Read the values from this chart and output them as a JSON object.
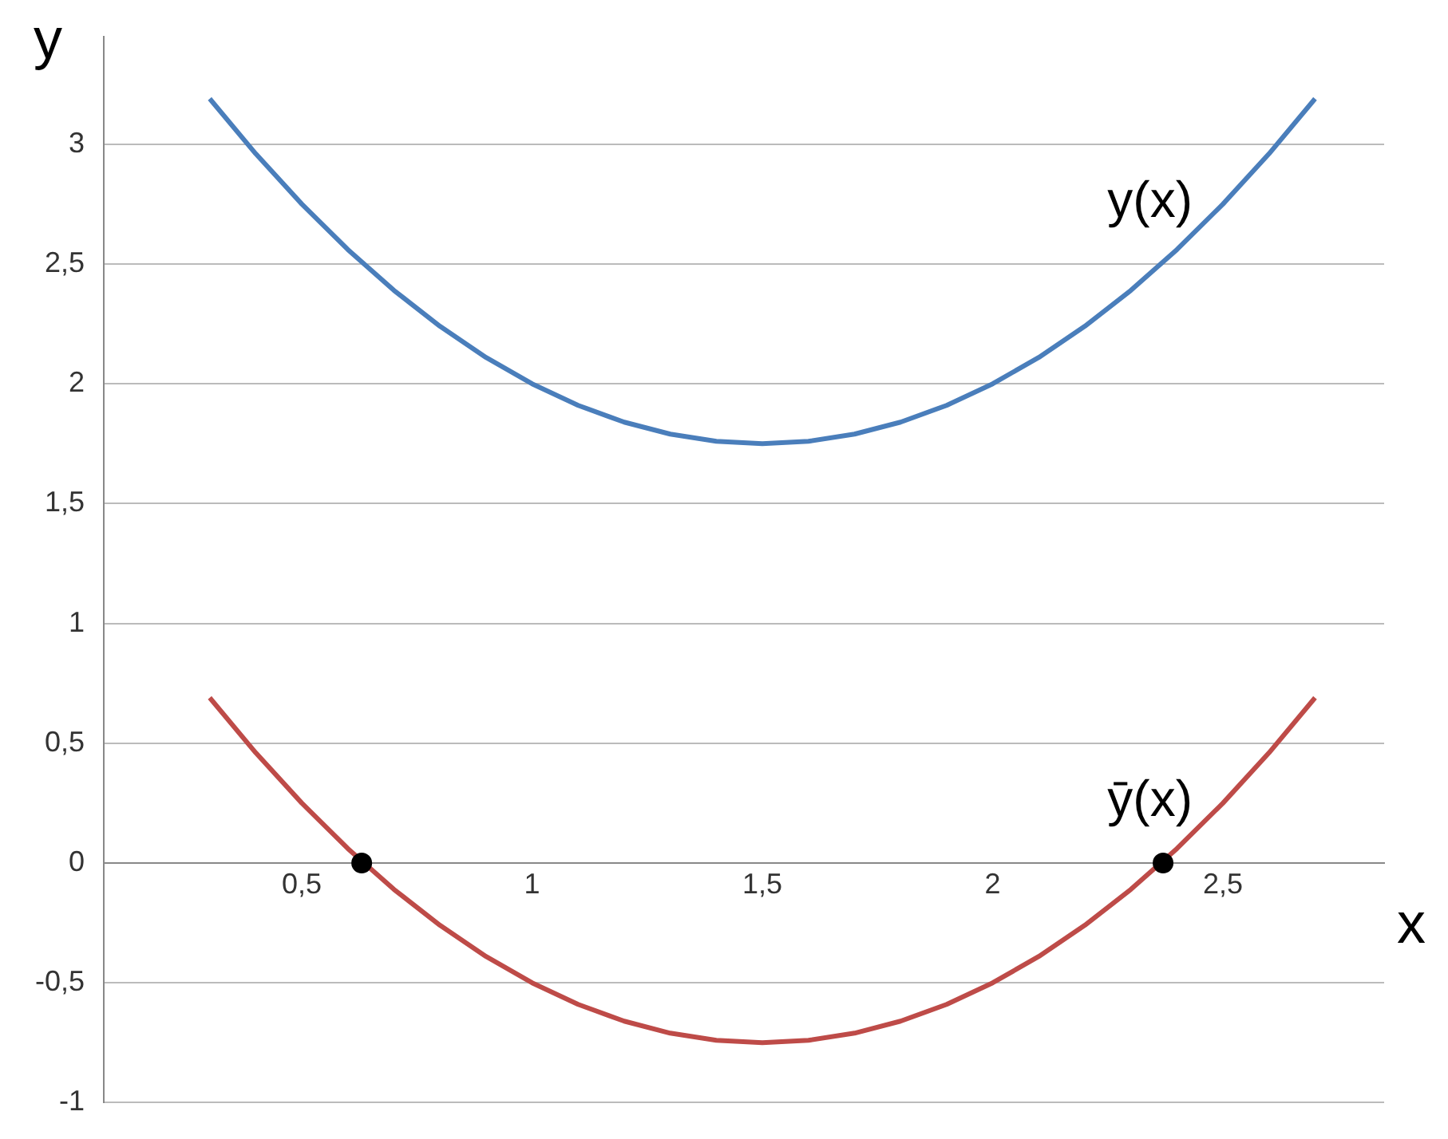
{
  "chart_data": {
    "type": "line",
    "xlabel": "x",
    "ylabel": "y",
    "xlim": [
      0.07,
      2.85
    ],
    "ylim": [
      -1,
      3.45
    ],
    "xticks": [
      {
        "value": 0.5,
        "label": "0,5"
      },
      1,
      {
        "value": 1.5,
        "label": "1,5"
      },
      2,
      {
        "value": 2.5,
        "label": "2,5"
      }
    ],
    "yticks": [
      -1,
      {
        "value": -0.5,
        "label": "-0,5"
      },
      0,
      {
        "value": 0.5,
        "label": "0,5"
      },
      1,
      {
        "value": 1.5,
        "label": "1,5"
      },
      2,
      {
        "value": 2.5,
        "label": "2,5"
      },
      3
    ],
    "grid": "y",
    "legend": false,
    "marker": "none",
    "series": [
      {
        "color": "#4a7ebb",
        "x": [
          0.3,
          0.4,
          0.5,
          0.6,
          0.7,
          0.8,
          0.9,
          1.0,
          1.1,
          1.2,
          1.3,
          1.4,
          1.5,
          1.6,
          1.7,
          1.8,
          1.9,
          2.0,
          2.1,
          2.2,
          2.3,
          2.4,
          2.5,
          2.6,
          2.7
        ],
        "values": [
          3.19,
          2.96,
          2.75,
          2.56,
          2.39,
          2.24,
          2.11,
          2.0,
          1.91,
          1.84,
          1.79,
          1.76,
          1.75,
          1.76,
          1.79,
          1.84,
          1.91,
          2.0,
          2.11,
          2.24,
          2.39,
          2.56,
          2.75,
          2.96,
          3.19
        ]
      },
      {
        "color": "#be4b48",
        "x": [
          0.3,
          0.4,
          0.5,
          0.6,
          0.7,
          0.8,
          0.9,
          1.0,
          1.1,
          1.2,
          1.3,
          1.4,
          1.5,
          1.6,
          1.7,
          1.8,
          1.9,
          2.0,
          2.1,
          2.2,
          2.3,
          2.4,
          2.5,
          2.6,
          2.7
        ],
        "values": [
          0.69,
          0.46,
          0.25,
          0.06,
          -0.11,
          -0.26,
          -0.39,
          -0.5,
          -0.59,
          -0.66,
          -0.71,
          -0.74,
          -0.75,
          -0.74,
          -0.71,
          -0.66,
          -0.59,
          -0.5,
          -0.39,
          -0.26,
          -0.11,
          0.06,
          0.25,
          0.46,
          0.69
        ]
      },
      {
        "type": "scatter",
        "color": "#000000",
        "marker": "circle",
        "x": [
          0.63,
          2.37
        ],
        "values": [
          0,
          0
        ]
      }
    ],
    "annotations": [
      "y(x)",
      "ȳ(x)"
    ]
  }
}
